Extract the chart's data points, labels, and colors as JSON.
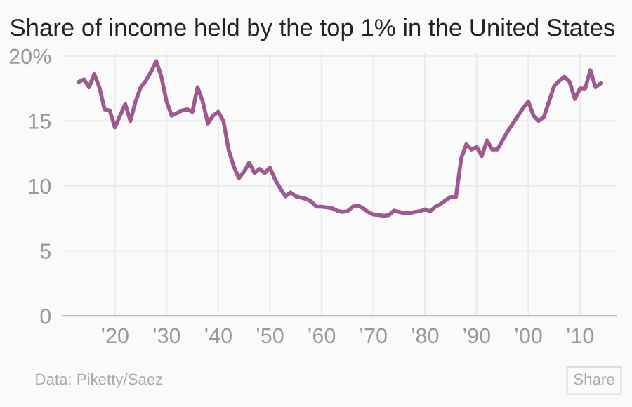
{
  "chart_data": {
    "type": "line",
    "title": "Share of income held by the top 1% in the United States",
    "x": [
      1913,
      1914,
      1915,
      1916,
      1917,
      1918,
      1919,
      1920,
      1921,
      1922,
      1923,
      1924,
      1925,
      1926,
      1927,
      1928,
      1929,
      1930,
      1931,
      1932,
      1933,
      1934,
      1935,
      1936,
      1937,
      1938,
      1939,
      1940,
      1941,
      1942,
      1943,
      1944,
      1945,
      1946,
      1947,
      1948,
      1949,
      1950,
      1951,
      1952,
      1953,
      1954,
      1955,
      1956,
      1957,
      1958,
      1959,
      1960,
      1961,
      1962,
      1963,
      1964,
      1965,
      1966,
      1967,
      1968,
      1969,
      1970,
      1971,
      1972,
      1973,
      1974,
      1975,
      1976,
      1977,
      1978,
      1979,
      1980,
      1981,
      1982,
      1983,
      1984,
      1985,
      1986,
      1987,
      1988,
      1989,
      1990,
      1991,
      1992,
      1993,
      1994,
      1995,
      1996,
      1997,
      1998,
      1999,
      2000,
      2001,
      2002,
      2003,
      2004,
      2005,
      2006,
      2007,
      2008,
      2009,
      2010,
      2011,
      2012,
      2013,
      2014
    ],
    "series": [
      {
        "color": "#9c5a8e",
        "values": [
          18.0,
          18.2,
          17.6,
          18.6,
          17.6,
          15.9,
          15.8,
          14.5,
          15.4,
          16.3,
          15.0,
          16.5,
          17.6,
          18.1,
          18.8,
          19.6,
          18.4,
          16.5,
          15.4,
          15.6,
          15.8,
          15.9,
          15.7,
          17.6,
          16.5,
          14.8,
          15.4,
          15.7,
          15.0,
          12.8,
          11.5,
          10.6,
          11.1,
          11.8,
          11.0,
          11.3,
          11.0,
          11.4,
          10.5,
          9.8,
          9.2,
          9.5,
          9.2,
          9.1,
          9.0,
          8.8,
          8.4,
          8.4,
          8.35,
          8.3,
          8.1,
          8.0,
          8.05,
          8.4,
          8.5,
          8.3,
          8.0,
          7.8,
          7.75,
          7.7,
          7.75,
          8.1,
          8.0,
          7.9,
          7.9,
          8.0,
          8.05,
          8.2,
          8.05,
          8.4,
          8.6,
          8.9,
          9.15,
          9.15,
          12.1,
          13.2,
          12.8,
          13.0,
          12.3,
          13.5,
          12.8,
          12.8,
          13.5,
          14.2,
          14.8,
          15.4,
          16.0,
          16.5,
          15.4,
          15.0,
          15.3,
          16.5,
          17.7,
          18.1,
          18.4,
          18.0,
          16.7,
          17.5,
          17.5,
          18.9,
          17.6,
          17.9
        ]
      }
    ],
    "xlim": [
      1910,
      2017
    ],
    "ylim": [
      0,
      20.3
    ],
    "xticks": [
      {
        "value": 1920,
        "label": "’20"
      },
      {
        "value": 1930,
        "label": "’30"
      },
      {
        "value": 1940,
        "label": "’40"
      },
      {
        "value": 1950,
        "label": "’50"
      },
      {
        "value": 1960,
        "label": "’60"
      },
      {
        "value": 1970,
        "label": "’70"
      },
      {
        "value": 1980,
        "label": "’80"
      },
      {
        "value": 1990,
        "label": "’90"
      },
      {
        "value": 2000,
        "label": "’00"
      },
      {
        "value": 2010,
        "label": "’10"
      }
    ],
    "yticks": [
      0,
      5,
      10,
      15,
      {
        "value": 20,
        "label": "20%"
      }
    ],
    "grid": true,
    "legend": false,
    "marker": "none",
    "line_style": "solid",
    "annotations": [
      "Data: Piketty/Saez",
      "Share"
    ]
  }
}
